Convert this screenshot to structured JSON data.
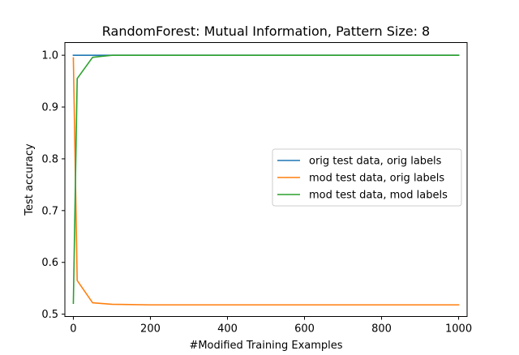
{
  "chart_data": {
    "type": "line",
    "title": "RandomForest: Mutual Information, Pattern Size: 8",
    "xlabel": "#Modified Training Examples",
    "ylabel": "Test accuracy",
    "xlim": [
      -22,
      1022
    ],
    "ylim": [
      0.4955,
      1.0245
    ],
    "xticks": [
      0,
      200,
      400,
      600,
      800,
      1000
    ],
    "yticks": [
      0.5,
      0.6,
      0.7,
      0.8,
      0.9,
      1.0
    ],
    "xtick_labels": [
      "0",
      "200",
      "400",
      "600",
      "800",
      "1000"
    ],
    "ytick_labels": [
      "0.5",
      "0.6",
      "0.7",
      "0.8",
      "0.9",
      "1.0"
    ],
    "grid": false,
    "legend_position": "center-right",
    "series": [
      {
        "name": "orig test data, orig labels",
        "color": "#1f77b4",
        "x": [
          0,
          10,
          50,
          100,
          200,
          500,
          1000
        ],
        "y": [
          1.0,
          1.0,
          1.0,
          1.0,
          1.0,
          1.0,
          1.0
        ]
      },
      {
        "name": "mod test data, orig labels",
        "color": "#ff7f0e",
        "x": [
          0,
          10,
          50,
          100,
          200,
          500,
          1000
        ],
        "y": [
          0.995,
          0.565,
          0.522,
          0.519,
          0.518,
          0.518,
          0.518
        ]
      },
      {
        "name": "mod test data, mod labels",
        "color": "#2ca02c",
        "x": [
          0,
          10,
          50,
          100,
          200,
          500,
          1000
        ],
        "y": [
          0.521,
          0.955,
          0.996,
          1.0,
          1.0,
          1.0,
          1.0
        ]
      }
    ]
  }
}
